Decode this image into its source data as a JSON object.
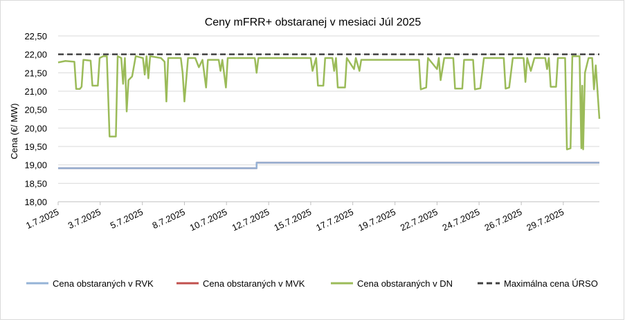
{
  "chart_data": {
    "type": "line",
    "title": "Ceny mFRR+ obstaranej v mesiaci Júl 2025",
    "y_label": "Cena (€/ MW)",
    "xlim": [
      0,
      30
    ],
    "xticks": [
      {
        "value": 0,
        "label": "1.7.2025"
      },
      {
        "value": 2.33,
        "label": "3.7.2025"
      },
      {
        "value": 4.67,
        "label": "5.7.2025"
      },
      {
        "value": 7,
        "label": "8.7.2025"
      },
      {
        "value": 9.33,
        "label": "10.7.2025"
      },
      {
        "value": 11.67,
        "label": "12.7.2025"
      },
      {
        "value": 14,
        "label": "15.7.2025"
      },
      {
        "value": 16.33,
        "label": "17.7.2025"
      },
      {
        "value": 18.67,
        "label": "19.7.2025"
      },
      {
        "value": 21,
        "label": "22.7.2025"
      },
      {
        "value": 23.33,
        "label": "24.7.2025"
      },
      {
        "value": 25.67,
        "label": "26.7.2025"
      },
      {
        "value": 28,
        "label": "29.7.2025"
      }
    ],
    "ylim": [
      18,
      22.5
    ],
    "yticks": [
      {
        "value": 18,
        "label": "18,00"
      },
      {
        "value": 18.5,
        "label": "18,50"
      },
      {
        "value": 19,
        "label": "19,00"
      },
      {
        "value": 19.5,
        "label": "19,50"
      },
      {
        "value": 20,
        "label": "20,00"
      },
      {
        "value": 20.5,
        "label": "20,50"
      },
      {
        "value": 21,
        "label": "21,00"
      },
      {
        "value": 21.5,
        "label": "21,50"
      },
      {
        "value": 22,
        "label": "22,00"
      },
      {
        "value": 22.5,
        "label": "22,50"
      }
    ],
    "grid": true,
    "legend": "bottom",
    "series": [
      {
        "name": "Cena obstaraných v MVK",
        "color": "#c0504d",
        "dash": false,
        "x": [
          0,
          11,
          11,
          30
        ],
        "values": [
          18.91,
          18.91,
          19.06,
          19.06
        ]
      },
      {
        "name": "Cena obstaraných v RVK",
        "color": "#95b3d7",
        "dash": false,
        "x": [
          0,
          11,
          11,
          30
        ],
        "values": [
          18.91,
          18.91,
          19.06,
          19.06
        ]
      },
      {
        "name": "Cena obstaraných v DN",
        "color": "#9bbb59",
        "dash": false,
        "x": [
          0,
          0.4,
          0.9,
          1.0,
          1.2,
          1.3,
          1.4,
          1.8,
          1.9,
          2.2,
          2.3,
          2.5,
          2.7,
          2.85,
          3.2,
          3.3,
          3.5,
          3.6,
          3.7,
          3.8,
          3.9,
          4.1,
          4.3,
          4.7,
          4.8,
          4.9,
          5.0,
          5.1,
          5.7,
          5.9,
          6.0,
          6.1,
          6.8,
          6.9,
          7.0,
          7.2,
          7.6,
          7.8,
          8.0,
          8.2,
          8.3,
          8.9,
          9.0,
          9.1,
          9.3,
          9.4,
          10.9,
          11.0,
          11.1,
          14.0,
          14.1,
          14.3,
          14.4,
          14.7,
          14.8,
          15.2,
          15.3,
          15.4,
          15.5,
          15.9,
          16.0,
          16.4,
          16.5,
          16.7,
          16.8,
          20.0,
          20.1,
          20.4,
          20.5,
          21.0,
          21.1,
          21.2,
          21.4,
          21.9,
          22.0,
          22.4,
          22.5,
          23.0,
          23.1,
          23.4,
          23.6,
          24.7,
          24.8,
          25.0,
          25.2,
          25.8,
          25.9,
          26.0,
          26.2,
          26.4,
          27.0,
          27.1,
          27.2,
          27.3,
          27.6,
          27.7,
          28.1,
          28.2,
          28.4,
          28.5,
          28.9,
          29.0,
          29.05,
          29.1,
          29.2,
          29.4,
          29.6,
          29.7,
          29.8,
          30.0
        ],
        "values": [
          21.78,
          21.82,
          21.8,
          21.06,
          21.06,
          21.12,
          21.85,
          21.83,
          21.15,
          21.15,
          21.9,
          21.95,
          21.95,
          19.77,
          19.77,
          21.95,
          21.9,
          21.2,
          21.9,
          20.45,
          21.3,
          21.4,
          21.95,
          21.9,
          21.45,
          21.95,
          21.35,
          21.95,
          21.9,
          21.8,
          20.72,
          21.9,
          21.9,
          21.5,
          20.72,
          21.9,
          21.9,
          21.65,
          21.85,
          21.1,
          21.85,
          21.85,
          21.55,
          21.85,
          21.1,
          21.9,
          21.9,
          21.5,
          21.9,
          21.9,
          21.55,
          21.9,
          21.15,
          21.15,
          21.9,
          21.9,
          21.55,
          21.9,
          21.1,
          21.1,
          21.9,
          21.6,
          21.9,
          21.55,
          21.85,
          21.85,
          21.05,
          21.1,
          21.9,
          21.6,
          21.9,
          21.3,
          21.9,
          21.9,
          21.07,
          21.07,
          21.85,
          21.85,
          21.05,
          21.08,
          21.9,
          21.9,
          21.07,
          21.1,
          21.9,
          21.9,
          21.25,
          21.9,
          21.55,
          21.9,
          21.9,
          21.6,
          21.9,
          21.12,
          21.12,
          21.9,
          21.9,
          19.42,
          19.45,
          21.95,
          21.95,
          19.45,
          21.15,
          19.42,
          21.5,
          21.9,
          21.9,
          21.05,
          21.7,
          20.25
        ]
      },
      {
        "name": "Maximálna cena ÚRSO",
        "color": "#404040",
        "dash": true,
        "x": [
          0,
          30
        ],
        "values": [
          22,
          22
        ]
      }
    ]
  }
}
